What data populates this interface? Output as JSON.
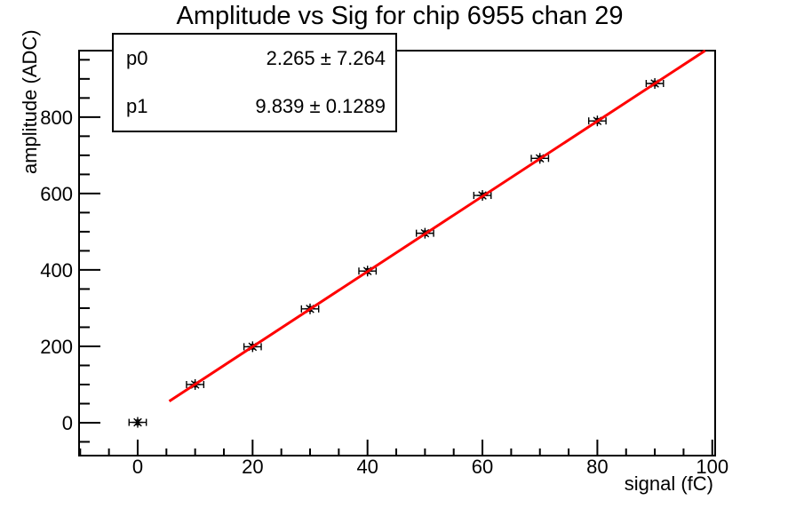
{
  "title": "Amplitude vs Sig for chip 6955 chan 29",
  "stats_box": {
    "rows": [
      {
        "name": "p0",
        "value": "2.265 ± 7.264"
      },
      {
        "name": "p1",
        "value": "9.839 ± 0.1289"
      }
    ]
  },
  "chart_data": {
    "type": "scatter",
    "title": "Amplitude vs Sig for chip 6955 chan 29",
    "xlabel": "signal (fC)",
    "ylabel": "amplitude (ADC)",
    "x": [
      0,
      10,
      20,
      30,
      40,
      50,
      60,
      70,
      80,
      90
    ],
    "y": [
      1,
      100,
      199,
      298,
      397,
      496,
      595,
      692,
      790,
      888
    ],
    "x_err": 1.5,
    "y_err": 6,
    "xlim": [
      -10.2,
      100.5
    ],
    "ylim": [
      -86,
      974
    ],
    "x_major_ticks": [
      0,
      20,
      40,
      60,
      80,
      100
    ],
    "x_minor_step": 5,
    "y_major_ticks": [
      0,
      200,
      400,
      600,
      800
    ],
    "y_minor_step": 50,
    "grid": false,
    "legend": "none",
    "marker": {
      "style": "asterisk",
      "color": "#000000"
    },
    "fit": {
      "type": "linear",
      "p0": 2.265,
      "p0_err": 7.264,
      "p1": 9.839,
      "p1_err": 0.1289,
      "x_start": 5.5,
      "x_end": 99.5,
      "color": "#ff0000",
      "line_width": 3
    },
    "colors": {
      "axis": "#000000",
      "background": "#ffffff"
    }
  }
}
